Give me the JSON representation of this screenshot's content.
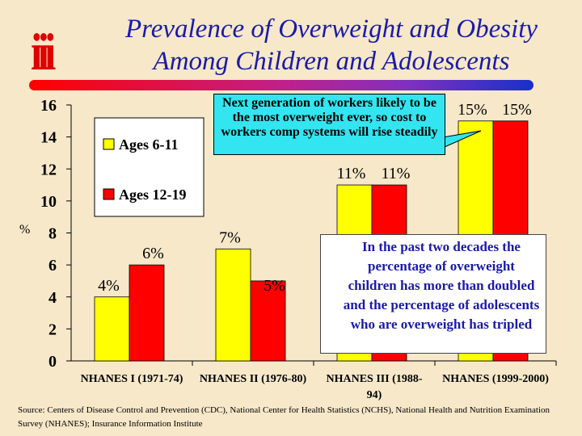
{
  "logo": "iii",
  "title": "Prevalence of Overweight and Obesity Among Children and Adolescents",
  "callout": "Next generation of workers likely to be the most overweight ever, so cost to workers comp systems will rise steadily",
  "note": "In the past two decades the percentage of overweight children has more than doubled and the percentage of adolescents who are overweight has tripled",
  "source": "Source: Centers of Disease Control and Prevention (CDC), National Center for Health Statistics (NCHS), National Health and Nutrition Examination Survey (NHANES); Insurance Information Institute",
  "chart_data": {
    "type": "bar",
    "ylabel": "%",
    "ylim": [
      0,
      16
    ],
    "yticks": [
      0,
      2,
      4,
      6,
      8,
      10,
      12,
      14,
      16
    ],
    "categories": [
      "NHANES I (1971-74)",
      "NHANES II (1976-80)",
      "NHANES III (1988-94)",
      "NHANES (1999-2000)"
    ],
    "series": [
      {
        "name": "Ages 6-11",
        "color": "#ffff00",
        "values": [
          4,
          7,
          11,
          15
        ],
        "labels": [
          "4%",
          "7%",
          "11%",
          "15%"
        ]
      },
      {
        "name": "Ages 12-19",
        "color": "#ff0000",
        "values": [
          6,
          5,
          11,
          15
        ],
        "labels": [
          "6%",
          "5%",
          "11%",
          "15%"
        ]
      }
    ],
    "legend": "left"
  }
}
